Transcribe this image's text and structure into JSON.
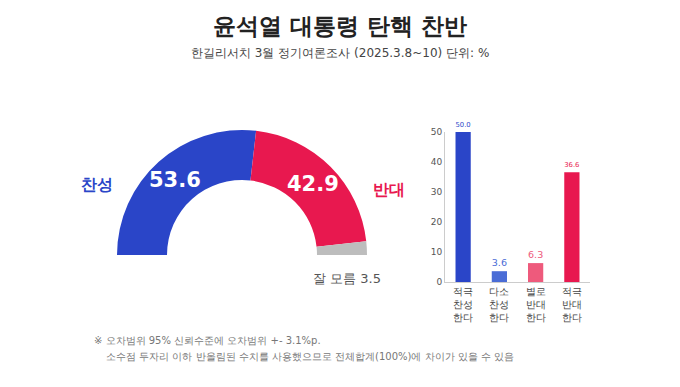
{
  "title": "윤석열 대통령 탄핵 찬반",
  "subtitle": "한길리서치 3월 정기여론조사 (2025.3.8~10) 단위: %",
  "notes": [
    "※ 오차범위 95% 신뢰수준에 오차범위 +- 3.1%p.",
    "소수점 두자리 이하 반올림된 수치를 사용했으므로 전체합계(100%)에 차이가 있을 수 있음"
  ],
  "chart_data": [
    {
      "type": "pie",
      "categories": [
        "찬성",
        "반대",
        "잘 모름"
      ],
      "values": [
        53.6,
        42.9,
        3.5
      ],
      "colors": [
        "#2a45c8",
        "#e8184f",
        "#bdbdbd"
      ],
      "data_labels": true
    },
    {
      "type": "bar",
      "categories": [
        "적극 찬성 한다",
        "다소 찬성 한다",
        "별로 반대 한다",
        "적극 반대 한다"
      ],
      "values": [
        50.0,
        3.6,
        6.3,
        36.6
      ],
      "value_labels": [
        "50.0",
        "3.6",
        "6.3",
        "36.6"
      ],
      "colors": [
        "#2a45c8",
        "#4a6cd6",
        "#ee5a7c",
        "#e8184f"
      ],
      "ylim": [
        0,
        50
      ],
      "yticks": [
        0,
        10,
        20,
        30,
        40,
        50
      ],
      "grid": false,
      "data_labels": true
    }
  ]
}
